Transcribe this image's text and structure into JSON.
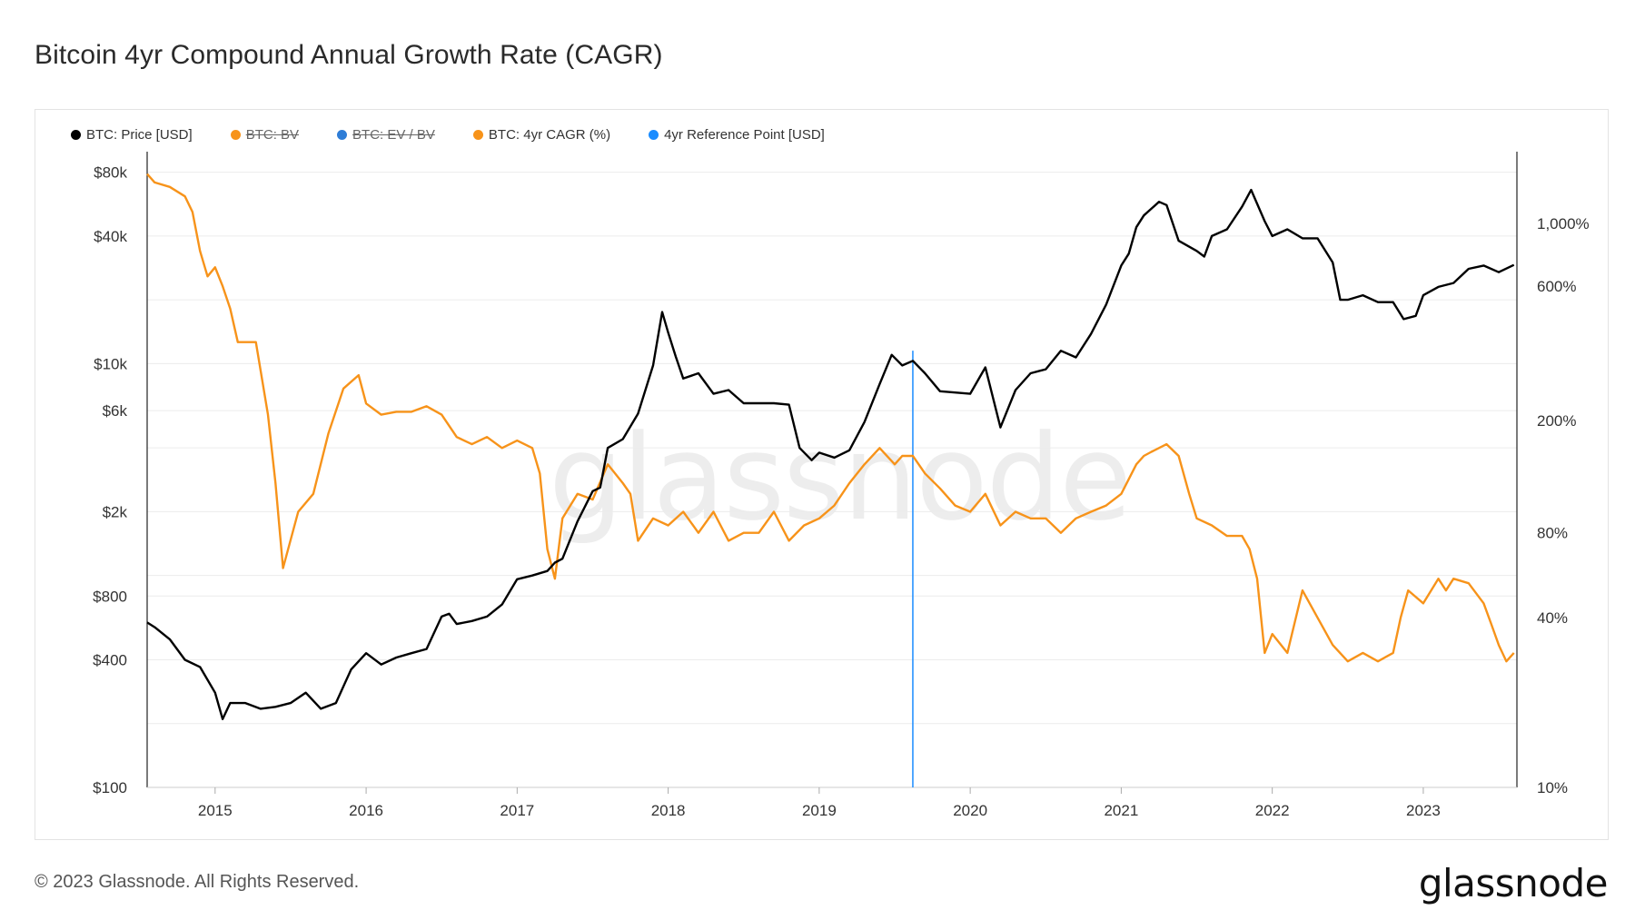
{
  "page": {
    "title": "Bitcoin 4yr Compound Annual Growth Rate (CAGR)",
    "footer": "© 2023 Glassnode. All Rights Reserved.",
    "brand": "glassnode",
    "watermark": "glassnode"
  },
  "legend": [
    {
      "label": "BTC: Price [USD]",
      "color": "#000000",
      "active": true
    },
    {
      "label": "BTC: BV",
      "color": "#f7931a",
      "active": false
    },
    {
      "label": "BTC: EV / BV",
      "color": "#2e7dd7",
      "active": false
    },
    {
      "label": "BTC: 4yr CAGR (%)",
      "color": "#f7931a",
      "active": true
    },
    {
      "label": "4yr Reference Point [USD]",
      "color": "#1a8cff",
      "active": true
    }
  ],
  "colors": {
    "price": "#000000",
    "cagr": "#f7931a",
    "reference": "#1a8cff",
    "grid": "#ececec",
    "axis": "#222222"
  },
  "chart_data": {
    "type": "line",
    "title": "Bitcoin 4yr Compound Annual Growth Rate (CAGR)",
    "x_range": [
      2014.55,
      2023.62
    ],
    "x_ticks": [
      2015,
      2016,
      2017,
      2018,
      2019,
      2020,
      2021,
      2022,
      2023
    ],
    "x_tick_labels": [
      "2015",
      "2016",
      "2017",
      "2018",
      "2019",
      "2020",
      "2021",
      "2022",
      "2023"
    ],
    "y_left": {
      "scale": "log",
      "range": [
        100,
        100000
      ],
      "ticks": [
        100,
        400,
        800,
        2000,
        6000,
        10000,
        40000,
        80000
      ],
      "tick_labels": [
        "$100",
        "$400",
        "$800",
        "$2k",
        "$6k",
        "$10k",
        "$40k",
        "$80k"
      ]
    },
    "y_right": {
      "scale": "log",
      "range": [
        10,
        1800
      ],
      "ticks": [
        10,
        40,
        80,
        200,
        600,
        1000
      ],
      "tick_labels": [
        "10%",
        "40%",
        "80%",
        "200%",
        "600%",
        "1,000%"
      ]
    },
    "reference_point": {
      "x": 2019.62,
      "label": "4yr Reference Point [USD]"
    },
    "series": [
      {
        "name": "BTC: Price [USD]",
        "axis": "left",
        "x": [
          2014.55,
          2014.6,
          2014.7,
          2014.8,
          2014.9,
          2015.0,
          2015.05,
          2015.1,
          2015.2,
          2015.3,
          2015.4,
          2015.5,
          2015.6,
          2015.7,
          2015.8,
          2015.9,
          2016.0,
          2016.1,
          2016.2,
          2016.3,
          2016.4,
          2016.5,
          2016.55,
          2016.6,
          2016.7,
          2016.8,
          2016.9,
          2017.0,
          2017.1,
          2017.2,
          2017.25,
          2017.3,
          2017.4,
          2017.5,
          2017.55,
          2017.6,
          2017.7,
          2017.8,
          2017.9,
          2017.96,
          2018.0,
          2018.05,
          2018.1,
          2018.2,
          2018.3,
          2018.4,
          2018.5,
          2018.6,
          2018.7,
          2018.8,
          2018.87,
          2018.95,
          2019.0,
          2019.1,
          2019.2,
          2019.3,
          2019.4,
          2019.48,
          2019.55,
          2019.62,
          2019.7,
          2019.8,
          2019.9,
          2020.0,
          2020.1,
          2020.2,
          2020.3,
          2020.4,
          2020.5,
          2020.6,
          2020.7,
          2020.8,
          2020.9,
          2021.0,
          2021.05,
          2021.1,
          2021.15,
          2021.25,
          2021.3,
          2021.38,
          2021.5,
          2021.55,
          2021.6,
          2021.7,
          2021.8,
          2021.86,
          2021.95,
          2022.0,
          2022.1,
          2022.2,
          2022.3,
          2022.4,
          2022.45,
          2022.5,
          2022.6,
          2022.7,
          2022.8,
          2022.87,
          2022.95,
          2023.0,
          2023.1,
          2023.2,
          2023.3,
          2023.4,
          2023.5,
          2023.6
        ],
        "values": [
          600,
          570,
          500,
          400,
          370,
          280,
          210,
          250,
          250,
          235,
          240,
          250,
          280,
          235,
          250,
          360,
          430,
          380,
          410,
          430,
          450,
          640,
          660,
          590,
          610,
          640,
          730,
          960,
          1000,
          1050,
          1150,
          1200,
          1800,
          2500,
          2600,
          4000,
          4400,
          5800,
          9800,
          17500,
          14000,
          10800,
          8500,
          9000,
          7200,
          7500,
          6500,
          6500,
          6500,
          6400,
          4000,
          3500,
          3800,
          3600,
          3900,
          5300,
          8000,
          11000,
          9800,
          10300,
          9000,
          7400,
          7300,
          7200,
          9600,
          5000,
          7500,
          9000,
          9400,
          11500,
          10700,
          13800,
          19000,
          29000,
          33000,
          44000,
          50000,
          58000,
          56000,
          38000,
          34000,
          32000,
          40000,
          43000,
          55000,
          66000,
          47000,
          40000,
          43000,
          39000,
          39000,
          30000,
          20000,
          20000,
          21000,
          19500,
          19500,
          16200,
          16800,
          21000,
          23000,
          24000,
          28000,
          29000,
          27000,
          29200
        ]
      },
      {
        "name": "BTC: 4yr CAGR (%)",
        "axis": "right",
        "x": [
          2014.55,
          2014.6,
          2014.7,
          2014.8,
          2014.85,
          2014.9,
          2014.95,
          2015.0,
          2015.05,
          2015.1,
          2015.15,
          2015.2,
          2015.27,
          2015.35,
          2015.4,
          2015.45,
          2015.55,
          2015.65,
          2015.75,
          2015.85,
          2015.95,
          2016.0,
          2016.1,
          2016.2,
          2016.3,
          2016.4,
          2016.5,
          2016.6,
          2016.7,
          2016.8,
          2016.9,
          2017.0,
          2017.1,
          2017.15,
          2017.2,
          2017.25,
          2017.3,
          2017.4,
          2017.5,
          2017.6,
          2017.7,
          2017.75,
          2017.8,
          2017.9,
          2018.0,
          2018.1,
          2018.2,
          2018.3,
          2018.4,
          2018.5,
          2018.6,
          2018.7,
          2018.8,
          2018.9,
          2019.0,
          2019.1,
          2019.2,
          2019.3,
          2019.4,
          2019.5,
          2019.55,
          2019.62,
          2019.7,
          2019.8,
          2019.9,
          2020.0,
          2020.1,
          2020.2,
          2020.3,
          2020.4,
          2020.5,
          2020.6,
          2020.7,
          2020.8,
          2020.9,
          2021.0,
          2021.1,
          2021.15,
          2021.2,
          2021.3,
          2021.38,
          2021.45,
          2021.5,
          2021.6,
          2021.7,
          2021.8,
          2021.85,
          2021.9,
          2021.95,
          2022.0,
          2022.1,
          2022.2,
          2022.3,
          2022.4,
          2022.5,
          2022.6,
          2022.7,
          2022.8,
          2022.85,
          2022.9,
          2023.0,
          2023.1,
          2023.15,
          2023.2,
          2023.3,
          2023.4,
          2023.45,
          2023.5,
          2023.55,
          2023.6
        ],
        "values": [
          1500,
          1400,
          1350,
          1250,
          1100,
          800,
          650,
          700,
          600,
          500,
          380,
          380,
          380,
          210,
          120,
          60,
          95,
          110,
          180,
          260,
          290,
          230,
          210,
          215,
          215,
          225,
          210,
          175,
          165,
          175,
          160,
          170,
          160,
          130,
          70,
          55,
          90,
          110,
          105,
          140,
          120,
          110,
          75,
          90,
          85,
          95,
          80,
          95,
          75,
          80,
          80,
          95,
          75,
          85,
          90,
          100,
          120,
          140,
          160,
          140,
          150,
          150,
          130,
          115,
          100,
          95,
          110,
          85,
          95,
          90,
          90,
          80,
          90,
          95,
          100,
          110,
          140,
          150,
          155,
          165,
          150,
          110,
          90,
          85,
          78,
          78,
          70,
          55,
          30,
          35,
          30,
          50,
          40,
          32,
          28,
          30,
          28,
          30,
          40,
          50,
          45,
          55,
          50,
          55,
          53,
          45,
          38,
          32,
          28,
          30
        ]
      }
    ]
  }
}
